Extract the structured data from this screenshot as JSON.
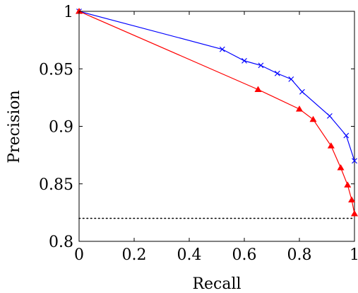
{
  "chart_data": {
    "type": "line",
    "xlabel": "Recall",
    "ylabel": "Precision",
    "xlim": [
      0,
      1
    ],
    "ylim": [
      0.8,
      1
    ],
    "xticks": [
      0,
      0.2,
      0.4,
      0.6,
      0.8,
      1
    ],
    "xtick_labels": [
      "0",
      "0.2",
      "0.4",
      "0.6",
      "0.8",
      "1"
    ],
    "yticks": [
      0.8,
      0.85,
      0.9,
      0.95,
      1
    ],
    "ytick_labels": [
      "0.8",
      "0.85",
      "0.9",
      "0.95",
      "1"
    ],
    "grid": false,
    "series": [
      {
        "color": "#0000ff",
        "marker": "x",
        "x": [
          0,
          0.52,
          0.6,
          0.66,
          0.72,
          0.77,
          0.81,
          0.91,
          0.97,
          1.0
        ],
        "y": [
          1.0,
          0.967,
          0.957,
          0.953,
          0.946,
          0.941,
          0.93,
          0.909,
          0.892,
          0.87
        ]
      },
      {
        "color": "#ff0000",
        "marker": "triangle",
        "x": [
          0,
          0.65,
          0.8,
          0.85,
          0.915,
          0.95,
          0.975,
          0.99,
          1.0
        ],
        "y": [
          1.0,
          0.932,
          0.915,
          0.906,
          0.883,
          0.864,
          0.849,
          0.836,
          0.824
        ]
      }
    ],
    "reference_line": {
      "y": 0.82,
      "style": "dotted",
      "color": "#000000"
    }
  }
}
